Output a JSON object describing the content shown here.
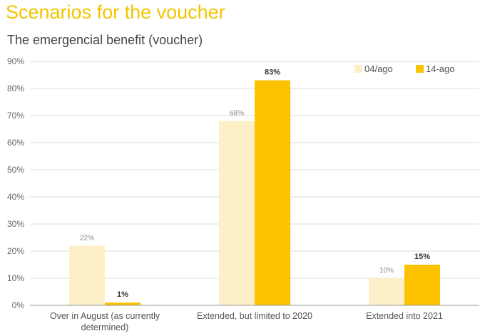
{
  "page_title": "Scenarios for the voucher",
  "chart_data": {
    "type": "bar",
    "title": "The emergencial benefit (voucher)",
    "categories": [
      [
        "Over in August (as currently",
        "determined)"
      ],
      [
        "Extended, but limited to 2020"
      ],
      [
        "Extended into 2021"
      ]
    ],
    "series": [
      {
        "name": "04/ago",
        "values": [
          22,
          68,
          10
        ],
        "labels": [
          "22%",
          "68%",
          "10%"
        ],
        "color": "#fdf0c9"
      },
      {
        "name": "14-ago",
        "values": [
          1,
          83,
          15
        ],
        "labels": [
          "1%",
          "83%",
          "15%"
        ],
        "color": "#fcc200"
      }
    ],
    "ylim": [
      0,
      90
    ],
    "yticks": [
      "0%",
      "10%",
      "20%",
      "30%",
      "40%",
      "50%",
      "60%",
      "70%",
      "80%",
      "90%"
    ],
    "grid": true,
    "legend_position": "top-right",
    "colors": {
      "gridline": "#dddddd",
      "axis": "#999999",
      "title": "#f2c500"
    }
  }
}
